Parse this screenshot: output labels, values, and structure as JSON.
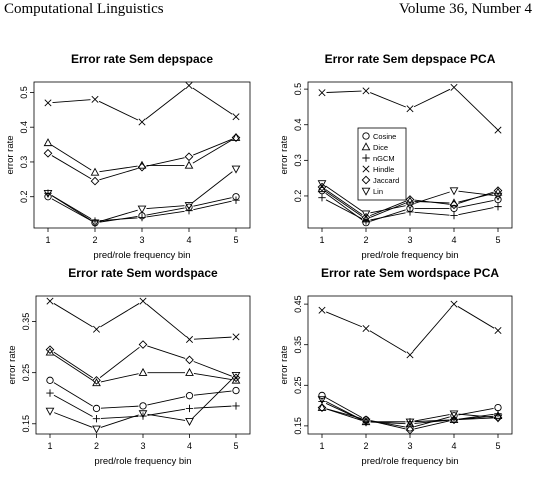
{
  "header": {
    "journal": "Computational Linguistics",
    "volume": "Volume 36, Number 4"
  },
  "chart_data": [
    {
      "type": "line",
      "title": "Error rate Sem depspace",
      "xlabel": "pred/role frequency bin",
      "ylabel": "error rate",
      "x": [
        1,
        2,
        3,
        4,
        5
      ],
      "ylim": [
        0.11,
        0.53
      ],
      "yticks": [
        0.2,
        0.3,
        0.4,
        0.5
      ],
      "ytick_labels": [
        "0.2",
        "0.3",
        "0.4",
        "0.5"
      ],
      "series": [
        {
          "name": "Cosine",
          "marker": "circle",
          "values": [
            0.2,
            0.125,
            0.145,
            0.17,
            0.2
          ]
        },
        {
          "name": "Dice",
          "marker": "triangle-up",
          "values": [
            0.355,
            0.27,
            0.29,
            0.29,
            0.37
          ]
        },
        {
          "name": "nGCM",
          "marker": "plus",
          "values": [
            0.21,
            0.13,
            0.14,
            0.16,
            0.19
          ]
        },
        {
          "name": "Hindle",
          "marker": "x",
          "values": [
            0.47,
            0.48,
            0.415,
            0.52,
            0.43
          ]
        },
        {
          "name": "Jaccard",
          "marker": "diamond",
          "values": [
            0.325,
            0.245,
            0.285,
            0.315,
            0.37
          ]
        },
        {
          "name": "Lin",
          "marker": "triangle-down",
          "values": [
            0.21,
            0.125,
            0.165,
            0.175,
            0.28
          ]
        }
      ]
    },
    {
      "type": "line",
      "title": "Error rate Sem depspace PCA",
      "xlabel": "pred/role frequency bin",
      "ylabel": "error rate",
      "x": [
        1,
        2,
        3,
        4,
        5
      ],
      "ylim": [
        0.11,
        0.52
      ],
      "yticks": [
        0.2,
        0.3,
        0.4,
        0.5
      ],
      "ytick_labels": [
        "0.2",
        "0.3",
        "0.4",
        "0.5"
      ],
      "legend": {
        "position": "center",
        "entries": [
          "Cosine",
          "Dice",
          "nGCM",
          "Hindle",
          "Jaccard",
          "Lin"
        ]
      },
      "series": [
        {
          "name": "Cosine",
          "marker": "circle",
          "values": [
            0.215,
            0.125,
            0.165,
            0.165,
            0.19
          ]
        },
        {
          "name": "Dice",
          "marker": "triangle-up",
          "values": [
            0.22,
            0.135,
            0.185,
            0.18,
            0.21
          ]
        },
        {
          "name": "nGCM",
          "marker": "plus",
          "values": [
            0.195,
            0.13,
            0.155,
            0.145,
            0.17
          ]
        },
        {
          "name": "Hindle",
          "marker": "x",
          "values": [
            0.49,
            0.495,
            0.445,
            0.505,
            0.385
          ]
        },
        {
          "name": "Jaccard",
          "marker": "diamond",
          "values": [
            0.225,
            0.14,
            0.19,
            0.175,
            0.215
          ]
        },
        {
          "name": "Lin",
          "marker": "triangle-down",
          "values": [
            0.235,
            0.15,
            0.175,
            0.215,
            0.2
          ]
        }
      ]
    },
    {
      "type": "line",
      "title": "Error rate Sem wordspace",
      "xlabel": "pred/role frequency bin",
      "ylabel": "error rate",
      "x": [
        1,
        2,
        3,
        4,
        5
      ],
      "ylim": [
        0.13,
        0.4
      ],
      "yticks": [
        0.15,
        0.25,
        0.35
      ],
      "ytick_labels": [
        "0.15",
        "0.25",
        "0.35"
      ],
      "series": [
        {
          "name": "Cosine",
          "marker": "circle",
          "values": [
            0.235,
            0.18,
            0.185,
            0.205,
            0.215
          ]
        },
        {
          "name": "Dice",
          "marker": "triangle-up",
          "values": [
            0.29,
            0.23,
            0.25,
            0.25,
            0.235
          ]
        },
        {
          "name": "nGCM",
          "marker": "plus",
          "values": [
            0.21,
            0.16,
            0.165,
            0.18,
            0.185
          ]
        },
        {
          "name": "Hindle",
          "marker": "x",
          "values": [
            0.39,
            0.335,
            0.39,
            0.315,
            0.32
          ]
        },
        {
          "name": "Jaccard",
          "marker": "diamond",
          "values": [
            0.295,
            0.235,
            0.305,
            0.275,
            0.24
          ]
        },
        {
          "name": "Lin",
          "marker": "triangle-down",
          "values": [
            0.175,
            0.14,
            0.17,
            0.155,
            0.245
          ]
        }
      ]
    },
    {
      "type": "line",
      "title": "Error rate Sem wordspace PCA",
      "xlabel": "pred/role frequency bin",
      "ylabel": "error rate",
      "x": [
        1,
        2,
        3,
        4,
        5
      ],
      "ylim": [
        0.13,
        0.47
      ],
      "yticks": [
        0.15,
        0.25,
        0.35,
        0.45
      ],
      "ytick_labels": [
        "0.15",
        "0.25",
        "0.35",
        "0.45"
      ],
      "series": [
        {
          "name": "Cosine",
          "marker": "circle",
          "values": [
            0.225,
            0.165,
            0.145,
            0.175,
            0.195
          ]
        },
        {
          "name": "Dice",
          "marker": "triangle-up",
          "values": [
            0.195,
            0.16,
            0.155,
            0.165,
            0.175
          ]
        },
        {
          "name": "nGCM",
          "marker": "plus",
          "values": [
            0.21,
            0.16,
            0.16,
            0.165,
            0.18
          ]
        },
        {
          "name": "Hindle",
          "marker": "x",
          "values": [
            0.435,
            0.39,
            0.325,
            0.45,
            0.385
          ]
        },
        {
          "name": "Jaccard",
          "marker": "diamond",
          "values": [
            0.195,
            0.165,
            0.14,
            0.165,
            0.17
          ]
        },
        {
          "name": "Lin",
          "marker": "triangle-down",
          "values": [
            0.215,
            0.16,
            0.16,
            0.18,
            0.17
          ]
        }
      ]
    }
  ]
}
